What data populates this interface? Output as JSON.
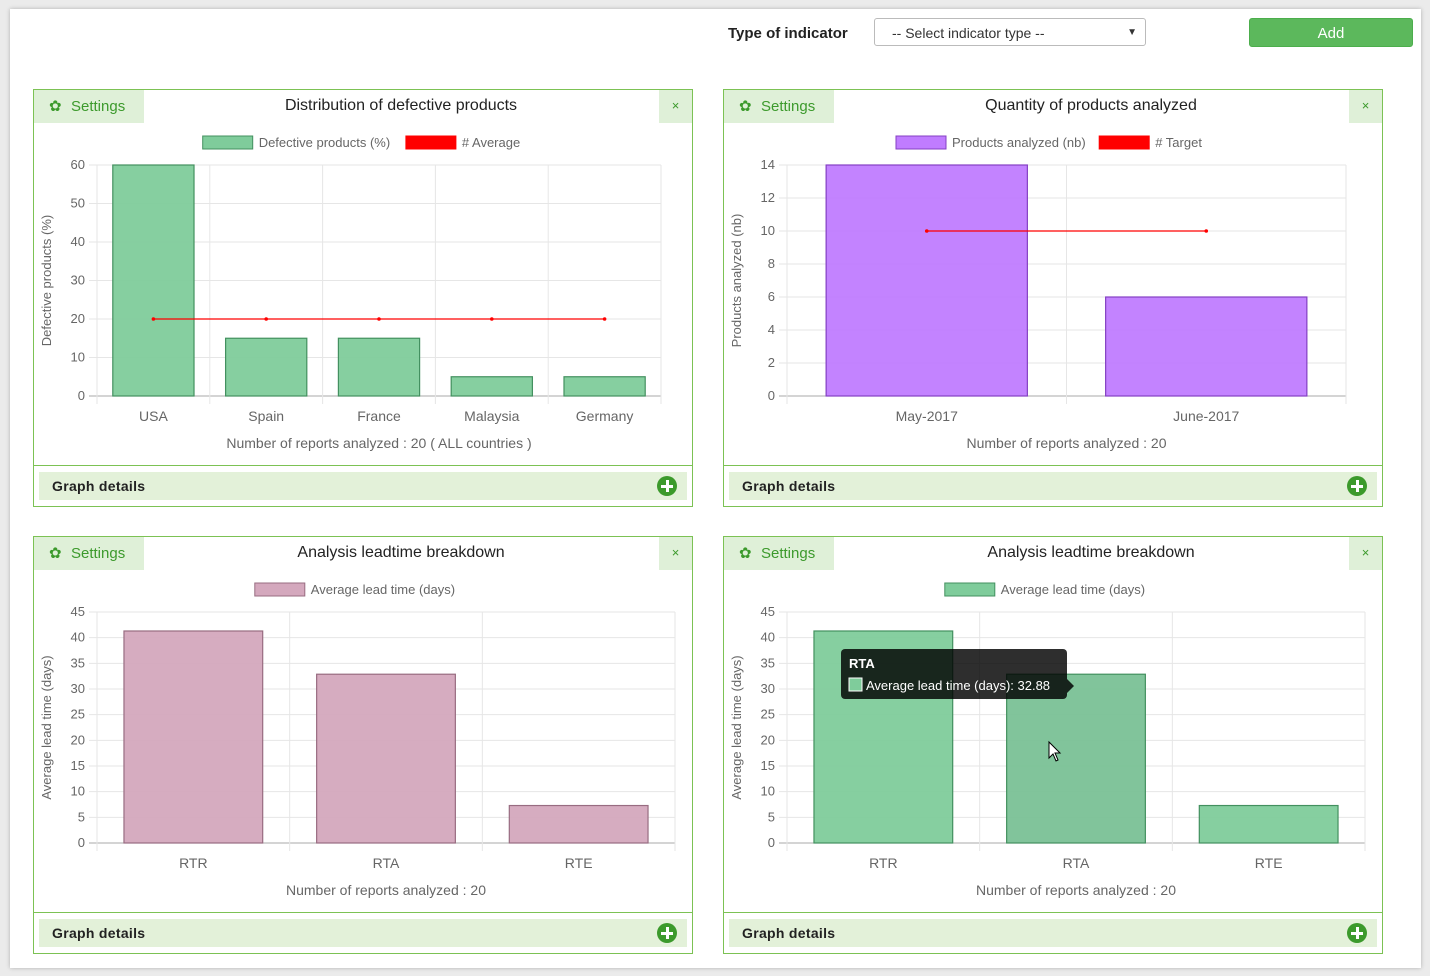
{
  "toolbar": {
    "label": "Type of indicator",
    "select_value": "-- Select indicator type --",
    "add_label": "Add"
  },
  "panels": [
    {
      "settings_label": "Settings",
      "title": "Distribution of defective products",
      "close_label": "×",
      "details_label": "Graph details",
      "footer": "Number of reports analyzed : 20 ( ALL countries )",
      "legend": [
        "Defective products (%)",
        "# Average"
      ]
    },
    {
      "settings_label": "Settings",
      "title": "Quantity of products analyzed",
      "close_label": "×",
      "details_label": "Graph details",
      "footer": "Number of reports analyzed : 20",
      "legend": [
        "Products analyzed (nb)",
        "# Target"
      ]
    },
    {
      "settings_label": "Settings",
      "title": "Analysis leadtime breakdown",
      "close_label": "×",
      "details_label": "Graph details",
      "footer": "Number of reports analyzed : 20",
      "legend": [
        "Average lead time (days)"
      ]
    },
    {
      "settings_label": "Settings",
      "title": "Analysis leadtime breakdown",
      "close_label": "×",
      "details_label": "Graph details",
      "footer": "Number of reports analyzed : 20",
      "legend": [
        "Average lead time (days)"
      ]
    }
  ],
  "chart_data": [
    {
      "type": "bar",
      "title": "Distribution of defective products",
      "categories": [
        "USA",
        "Spain",
        "France",
        "Malaysia",
        "Germany"
      ],
      "series": [
        {
          "name": "Defective products (%)",
          "type": "bar",
          "values": [
            60,
            15,
            15,
            5,
            5
          ],
          "color": "#7fcc9b"
        },
        {
          "name": "# Average",
          "type": "line",
          "values": [
            20,
            20,
            20,
            20,
            20
          ],
          "color": "#ff0000"
        }
      ],
      "ylabel": "Defective products (%)",
      "ylim": [
        0,
        60
      ],
      "yticks": [
        0,
        10,
        20,
        30,
        40,
        50,
        60
      ],
      "grid": true,
      "legend": "top"
    },
    {
      "type": "bar",
      "title": "Quantity of products analyzed",
      "categories": [
        "May-2017",
        "June-2017"
      ],
      "series": [
        {
          "name": "Products analyzed (nb)",
          "type": "bar",
          "values": [
            14,
            6
          ],
          "color": "#c07cff"
        },
        {
          "name": "# Target",
          "type": "line",
          "values": [
            10,
            10
          ],
          "color": "#ff0000"
        }
      ],
      "ylabel": "Products analyzed (nb)",
      "ylim": [
        0,
        14
      ],
      "yticks": [
        0,
        2,
        4,
        6,
        8,
        10,
        12,
        14
      ],
      "grid": true,
      "legend": "top"
    },
    {
      "type": "bar",
      "title": "Analysis leadtime breakdown",
      "categories": [
        "RTR",
        "RTA",
        "RTE"
      ],
      "series": [
        {
          "name": "Average lead time (days)",
          "type": "bar",
          "values": [
            41.3,
            32.88,
            7.3
          ],
          "color": "#d4a8bd"
        }
      ],
      "ylabel": "Average lead time (days)",
      "ylim": [
        0,
        45
      ],
      "yticks": [
        0,
        5,
        10,
        15,
        20,
        25,
        30,
        35,
        40,
        45
      ],
      "grid": true,
      "legend": "top"
    },
    {
      "type": "bar",
      "title": "Analysis leadtime breakdown",
      "categories": [
        "RTR",
        "RTA",
        "RTE"
      ],
      "series": [
        {
          "name": "Average lead time (days)",
          "type": "bar",
          "values": [
            41.3,
            32.88,
            7.3
          ],
          "color": "#7fcc9b"
        }
      ],
      "ylabel": "Average lead time (days)",
      "ylim": [
        0,
        45
      ],
      "yticks": [
        0,
        5,
        10,
        15,
        20,
        25,
        30,
        35,
        40,
        45
      ],
      "grid": true,
      "legend": "top",
      "tooltip": {
        "title": "RTA",
        "text": "Average lead time (days): 32.88"
      }
    }
  ]
}
